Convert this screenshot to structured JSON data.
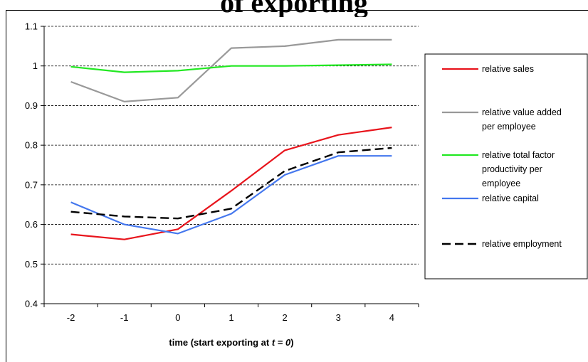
{
  "page": {
    "title": "of exporting"
  },
  "chart_data": {
    "type": "line",
    "x": [
      -2,
      -1,
      0,
      1,
      2,
      3,
      4
    ],
    "xlabel": {
      "prefix": "time (start exporting at ",
      "var": "t",
      "eq": " = ",
      "val": "0",
      "suffix": ")"
    },
    "ylabel": "",
    "ylim": [
      0.4,
      1.1
    ],
    "yticks": [
      0.4,
      0.5,
      0.6,
      0.7,
      0.8,
      0.9,
      1,
      1.1
    ],
    "ytick_labels": [
      "0.4",
      "0.5",
      "0.6",
      "0.7",
      "0.8",
      "0.9",
      "1",
      "1.1"
    ],
    "grid": {
      "y": true,
      "style": "dashed"
    },
    "legend": {
      "position": "right"
    },
    "series": [
      {
        "name": "relative sales",
        "color": "#e8141c",
        "dash": "solid",
        "label_lines": [
          "relative sales"
        ],
        "values": [
          0.575,
          0.562,
          0.588,
          0.685,
          0.787,
          0.826,
          0.845
        ]
      },
      {
        "name": "relative value added per employee",
        "color": "#999999",
        "dash": "solid",
        "label_lines": [
          "relative value added",
          "per employee"
        ],
        "values": [
          0.96,
          0.91,
          0.92,
          1.045,
          1.05,
          1.066,
          1.066
        ]
      },
      {
        "name": "relative total factor productivity per employee",
        "color": "#22e822",
        "dash": "solid",
        "label_lines": [
          "relative total factor",
          "productivity per",
          "employee"
        ],
        "values": [
          0.998,
          0.984,
          0.988,
          1.0,
          1.0,
          1.002,
          1.004
        ]
      },
      {
        "name": "relative capital",
        "color": "#4477ee",
        "dash": "solid",
        "label_lines": [
          "relative capital"
        ],
        "values": [
          0.656,
          0.6,
          0.577,
          0.627,
          0.725,
          0.773,
          0.773
        ]
      },
      {
        "name": "relative employment",
        "color": "#000000",
        "dash": "dashed",
        "label_lines": [
          "relative employment"
        ],
        "values": [
          0.632,
          0.62,
          0.615,
          0.64,
          0.735,
          0.782,
          0.793
        ]
      }
    ]
  }
}
